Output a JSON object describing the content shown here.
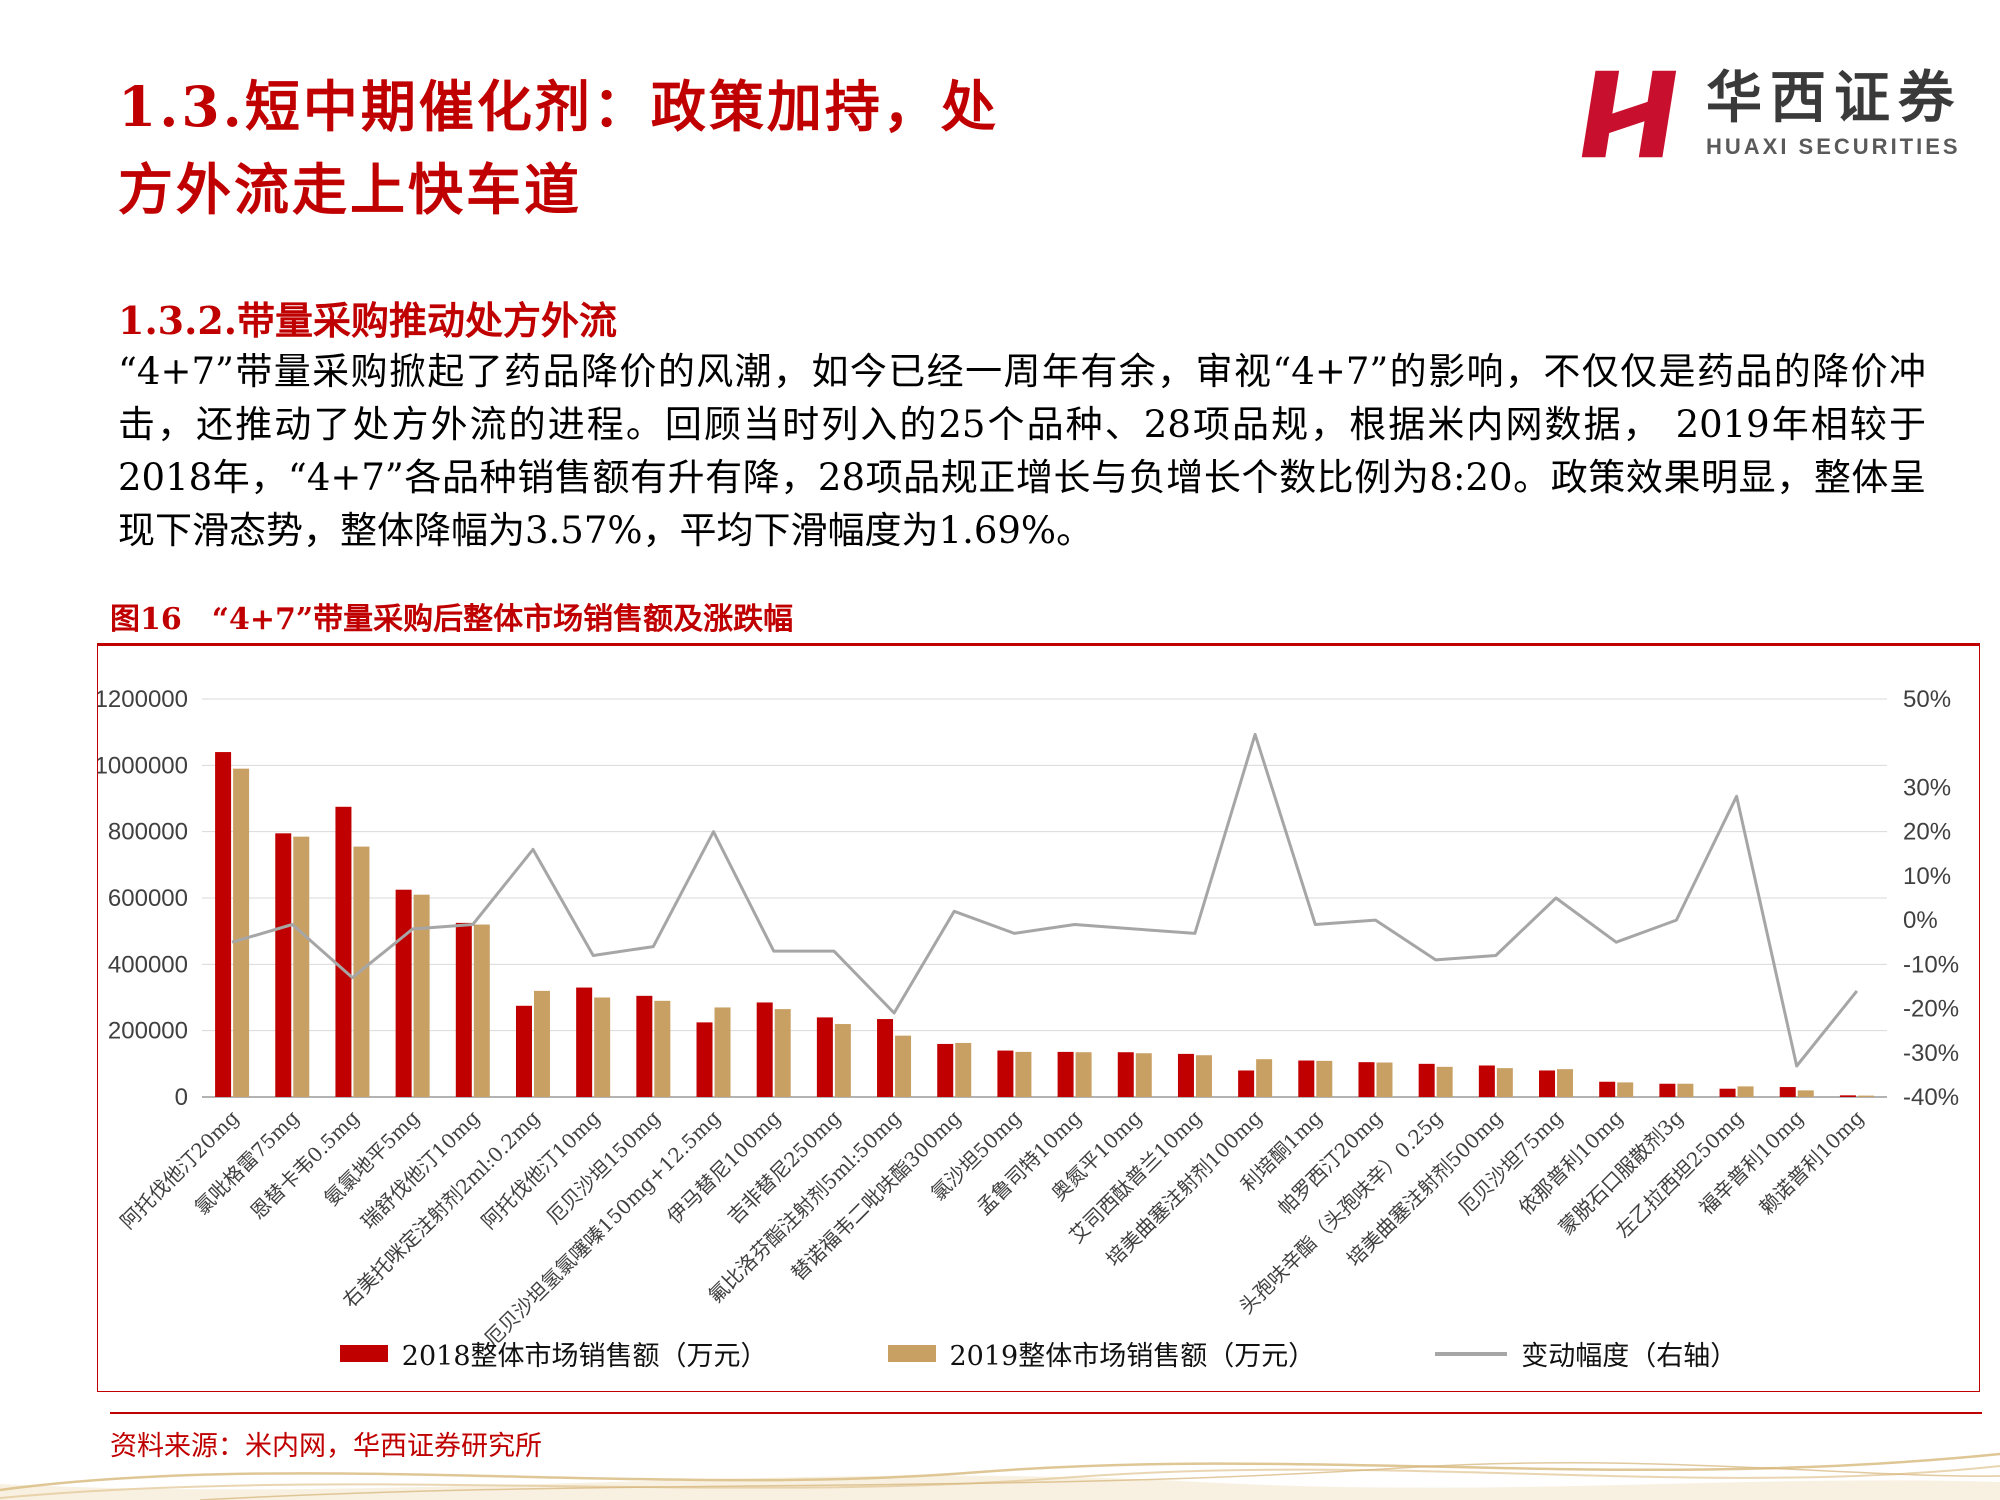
{
  "header": {
    "title_line1": "1.3.短中期催化剂：政策加持，处",
    "title_line2": "方外流走上快车道",
    "logo": {
      "cn_name": "华西证券",
      "en_name": "HUAXI SECURITIES",
      "mark_icon": "huaxi-h-monogram",
      "brand_red": "#C8102E"
    }
  },
  "section": {
    "subtitle": "1.3.2.带量采购推动处方外流",
    "paragraph": "“4+7”带量采购掀起了药品降价的风潮，如今已经一周年有余，审视“4+7”的影响，不仅仅是药品的降价冲击，还推动了处方外流的进程。回顾当时列入的25个品种、28项品规，根据米内网数据， 2019年相较于2018年，“4+7”各品种销售额有升有降，28项品规正增长与负增长个数比例为8:20。政策效果明显，整体呈现下滑态势，整体降幅为3.57%，平均下滑幅度为1.69%。"
  },
  "figure": {
    "caption": "图16　“4+7”带量采购后整体市场销售额及涨跌幅",
    "source": "资料来源：米内网，华西证券研究所"
  },
  "chart_data": {
    "type": "bar",
    "subtype": "combo bar + line (dual axis)",
    "grid": true,
    "legend_position": "bottom",
    "categories": [
      "阿托伐他汀20mg",
      "氯吡格雷75mg",
      "恩替卡韦0.5mg",
      "氨氯地平5mg",
      "瑞舒伐他汀10mg",
      "右美托咪定注射剂2ml:0.2mg",
      "阿托伐他汀10mg",
      "厄贝沙坦150mg",
      "厄贝沙坦氢氯噻嗪150mg+12.5mg",
      "伊马替尼100mg",
      "吉非替尼250mg",
      "氟比洛芬酯注射剂5ml:50mg",
      "替诺福韦二吡呋酯300mg",
      "氯沙坦50mg",
      "孟鲁司特10mg",
      "奥氮平10mg",
      "艾司西酞普兰10mg",
      "培美曲塞注射剂100mg",
      "利培酮1mg",
      "帕罗西汀20mg",
      "头孢呋辛酯（头孢呋辛）0.25g",
      "培美曲塞注射剂500mg",
      "厄贝沙坦75mg",
      "依那普利10mg",
      "蒙脱石口服散剂3g",
      "左乙拉西坦250mg",
      "福辛普利10mg",
      "赖诺普利10mg"
    ],
    "series": [
      {
        "name": "2018整体市场销售额（万元）",
        "type": "bar",
        "axis": "left",
        "color": "#C00000",
        "values": [
          1040000,
          795000,
          875000,
          625000,
          525000,
          275000,
          330000,
          305000,
          225000,
          285000,
          240000,
          235000,
          160000,
          140000,
          136000,
          135000,
          130000,
          80000,
          110000,
          105000,
          100000,
          95000,
          80000,
          46000,
          40000,
          25000,
          30000,
          5000
        ]
      },
      {
        "name": "2019整体市场销售额（万元）",
        "type": "bar",
        "axis": "left",
        "color": "#C9A063",
        "values": [
          990000,
          785000,
          755000,
          610000,
          520000,
          320000,
          300000,
          290000,
          270000,
          265000,
          220000,
          185000,
          163000,
          136000,
          135000,
          132000,
          126000,
          114000,
          109000,
          104000,
          91000,
          87000,
          84000,
          44000,
          40000,
          32000,
          20000,
          4200
        ]
      },
      {
        "name": "变动幅度（右轴）",
        "type": "line",
        "axis": "right",
        "color": "#A6A6A6",
        "values_pct": [
          -5,
          -1,
          -13,
          -2,
          -1,
          16,
          -8,
          -6,
          20,
          -7,
          -7,
          -21,
          2,
          -3,
          -1,
          -2,
          -3,
          42,
          -1,
          0,
          -9,
          -8,
          5,
          -5,
          0,
          28,
          -33,
          -16
        ]
      }
    ],
    "left_axis": {
      "min": 0,
      "max": 1200000,
      "step": 200000,
      "labels": [
        "1200000",
        "1000000",
        "800000",
        "600000",
        "400000",
        "200000",
        "0"
      ]
    },
    "right_axis": {
      "min": -40,
      "max": 50,
      "tick_labels": [
        "50%",
        "30%",
        "20%",
        "10%",
        "0%",
        "-10%",
        "-20%",
        "-30%",
        "-40%"
      ],
      "tick_values": [
        50,
        30,
        20,
        10,
        0,
        -10,
        -20,
        -30,
        -40
      ]
    }
  },
  "colors": {
    "accent_red": "#C00000",
    "bar_2019_tan": "#C9A063",
    "line_gray": "#A6A6A6",
    "wave_gold": "#DCC08A"
  }
}
